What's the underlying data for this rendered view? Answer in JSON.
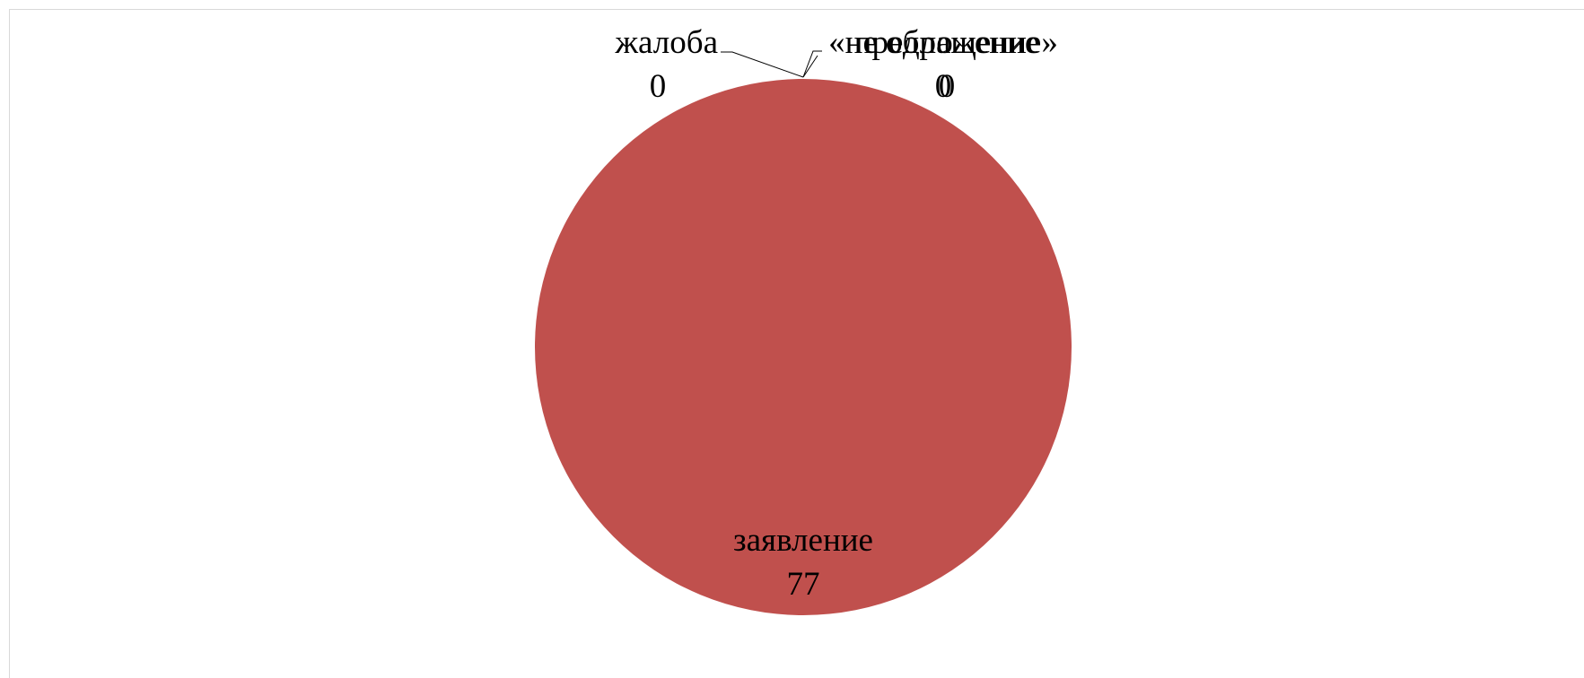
{
  "chart_data": {
    "type": "pie",
    "title": "",
    "categories": [
      "жалоба",
      "«не обращение»",
      "предложение",
      "заявление"
    ],
    "values": [
      0,
      0,
      0,
      77
    ],
    "colors": [
      "#4f81bd",
      "#9bbb59",
      "#8064a2",
      "#c0504d"
    ],
    "legend": "none",
    "data_labels": "category-and-value"
  }
}
